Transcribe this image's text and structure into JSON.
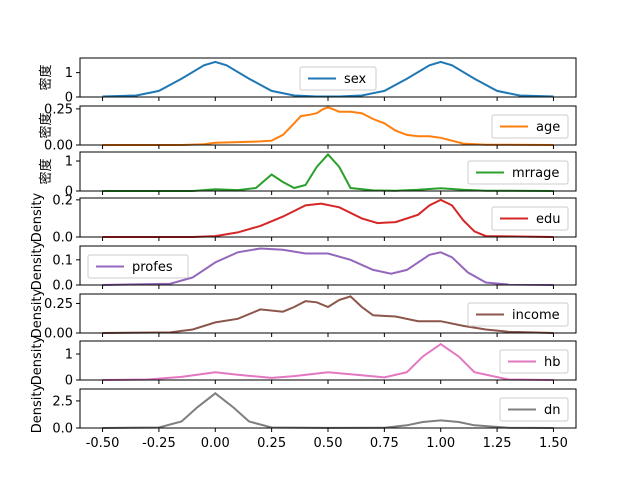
{
  "chart_data": {
    "type": "line",
    "xlim": [
      -0.6,
      1.6
    ],
    "x_ticks": [
      -0.5,
      -0.25,
      0.0,
      0.25,
      0.5,
      0.75,
      1.0,
      1.25,
      1.5
    ],
    "x_tick_labels": [
      "-0.50",
      "-0.25",
      "0.00",
      "0.25",
      "0.50",
      "0.75",
      "1.00",
      "1.25",
      "1.50"
    ],
    "grid": false,
    "panels": [
      {
        "name": "sex",
        "color": "#1f77b4",
        "ylabel": "密度",
        "legend_position": "center",
        "ylim": [
          0,
          1.6
        ],
        "y_ticks": [
          0,
          1
        ],
        "y_tick_labels": [
          "0",
          "1"
        ],
        "points": [
          [
            -0.5,
            0.02
          ],
          [
            -0.35,
            0.06
          ],
          [
            -0.25,
            0.25
          ],
          [
            -0.15,
            0.75
          ],
          [
            -0.05,
            1.3
          ],
          [
            0.0,
            1.44
          ],
          [
            0.05,
            1.3
          ],
          [
            0.15,
            0.75
          ],
          [
            0.25,
            0.25
          ],
          [
            0.35,
            0.06
          ],
          [
            0.45,
            0.02
          ],
          [
            0.5,
            0.02
          ],
          [
            0.55,
            0.02
          ],
          [
            0.65,
            0.06
          ],
          [
            0.75,
            0.25
          ],
          [
            0.85,
            0.75
          ],
          [
            0.95,
            1.3
          ],
          [
            1.0,
            1.44
          ],
          [
            1.05,
            1.3
          ],
          [
            1.15,
            0.75
          ],
          [
            1.25,
            0.25
          ],
          [
            1.35,
            0.06
          ],
          [
            1.5,
            0.02
          ]
        ]
      },
      {
        "name": "age",
        "color": "#ff7f0e",
        "ylabel": "密度",
        "legend_position": "right",
        "ylim": [
          0,
          0.27
        ],
        "y_ticks": [
          0.0,
          0.25
        ],
        "y_tick_labels": [
          "0.00",
          "0.25"
        ],
        "points": [
          [
            -0.5,
            0.0
          ],
          [
            -0.15,
            0.0
          ],
          [
            -0.05,
            0.005
          ],
          [
            0.0,
            0.015
          ],
          [
            0.1,
            0.02
          ],
          [
            0.2,
            0.025
          ],
          [
            0.25,
            0.03
          ],
          [
            0.3,
            0.07
          ],
          [
            0.35,
            0.15
          ],
          [
            0.38,
            0.2
          ],
          [
            0.42,
            0.21
          ],
          [
            0.45,
            0.22
          ],
          [
            0.48,
            0.25
          ],
          [
            0.5,
            0.26
          ],
          [
            0.52,
            0.25
          ],
          [
            0.55,
            0.23
          ],
          [
            0.6,
            0.23
          ],
          [
            0.65,
            0.22
          ],
          [
            0.7,
            0.18
          ],
          [
            0.75,
            0.15
          ],
          [
            0.8,
            0.1
          ],
          [
            0.85,
            0.07
          ],
          [
            0.9,
            0.06
          ],
          [
            0.95,
            0.06
          ],
          [
            1.0,
            0.05
          ],
          [
            1.05,
            0.03
          ],
          [
            1.1,
            0.01
          ],
          [
            1.2,
            0.002
          ],
          [
            1.5,
            0.0
          ]
        ]
      },
      {
        "name": "mrrage",
        "color": "#2ca02c",
        "ylabel": "密度",
        "legend_position": "right",
        "ylim": [
          0,
          1.3
        ],
        "y_ticks": [
          0,
          1
        ],
        "y_tick_labels": [
          "0",
          "1"
        ],
        "points": [
          [
            -0.5,
            0.0
          ],
          [
            -0.1,
            0.0
          ],
          [
            0.0,
            0.06
          ],
          [
            0.1,
            0.03
          ],
          [
            0.18,
            0.1
          ],
          [
            0.25,
            0.55
          ],
          [
            0.3,
            0.3
          ],
          [
            0.35,
            0.1
          ],
          [
            0.4,
            0.2
          ],
          [
            0.45,
            0.8
          ],
          [
            0.5,
            1.22
          ],
          [
            0.55,
            0.8
          ],
          [
            0.6,
            0.1
          ],
          [
            0.7,
            0.02
          ],
          [
            0.8,
            0.01
          ],
          [
            0.9,
            0.04
          ],
          [
            1.0,
            0.09
          ],
          [
            1.1,
            0.04
          ],
          [
            1.2,
            0.01
          ],
          [
            1.5,
            0.0
          ]
        ]
      },
      {
        "name": "edu",
        "color": "#d62728",
        "ylabel": "Density",
        "legend_position": "right",
        "ylim": [
          0,
          0.21
        ],
        "y_ticks": [
          0.0,
          0.2
        ],
        "y_tick_labels": [
          "0.0",
          "0.2"
        ],
        "points": [
          [
            -0.5,
            0.0
          ],
          [
            -0.1,
            0.0
          ],
          [
            0.0,
            0.005
          ],
          [
            0.1,
            0.025
          ],
          [
            0.2,
            0.06
          ],
          [
            0.3,
            0.11
          ],
          [
            0.4,
            0.17
          ],
          [
            0.47,
            0.18
          ],
          [
            0.55,
            0.16
          ],
          [
            0.65,
            0.1
          ],
          [
            0.72,
            0.075
          ],
          [
            0.8,
            0.08
          ],
          [
            0.9,
            0.12
          ],
          [
            0.95,
            0.17
          ],
          [
            1.0,
            0.2
          ],
          [
            1.05,
            0.17
          ],
          [
            1.1,
            0.09
          ],
          [
            1.15,
            0.03
          ],
          [
            1.2,
            0.005
          ],
          [
            1.5,
            0.0
          ]
        ]
      },
      {
        "name": "profes",
        "color": "#9467bd",
        "ylabel": "Density",
        "legend_position": "left",
        "ylim": [
          0,
          0.155
        ],
        "y_ticks": [
          0.0,
          0.1
        ],
        "y_tick_labels": [
          "0.0",
          "0.1"
        ],
        "points": [
          [
            -0.5,
            0.0
          ],
          [
            -0.2,
            0.005
          ],
          [
            -0.1,
            0.03
          ],
          [
            0.0,
            0.09
          ],
          [
            0.1,
            0.13
          ],
          [
            0.2,
            0.145
          ],
          [
            0.3,
            0.14
          ],
          [
            0.4,
            0.125
          ],
          [
            0.5,
            0.125
          ],
          [
            0.6,
            0.1
          ],
          [
            0.7,
            0.06
          ],
          [
            0.78,
            0.045
          ],
          [
            0.85,
            0.06
          ],
          [
            0.95,
            0.12
          ],
          [
            1.0,
            0.13
          ],
          [
            1.05,
            0.11
          ],
          [
            1.12,
            0.05
          ],
          [
            1.2,
            0.01
          ],
          [
            1.3,
            0.002
          ],
          [
            1.5,
            0.0
          ]
        ]
      },
      {
        "name": "income",
        "color": "#8c564b",
        "ylabel": "Density",
        "legend_position": "right",
        "ylim": [
          0,
          0.33
        ],
        "y_ticks": [
          0.0,
          0.25
        ],
        "y_tick_labels": [
          "0.00",
          "0.25"
        ],
        "points": [
          [
            -0.5,
            0.0
          ],
          [
            -0.2,
            0.005
          ],
          [
            -0.1,
            0.03
          ],
          [
            0.0,
            0.09
          ],
          [
            0.1,
            0.12
          ],
          [
            0.2,
            0.2
          ],
          [
            0.3,
            0.18
          ],
          [
            0.35,
            0.22
          ],
          [
            0.4,
            0.27
          ],
          [
            0.45,
            0.26
          ],
          [
            0.5,
            0.22
          ],
          [
            0.55,
            0.28
          ],
          [
            0.6,
            0.31
          ],
          [
            0.65,
            0.22
          ],
          [
            0.7,
            0.15
          ],
          [
            0.8,
            0.14
          ],
          [
            0.9,
            0.1
          ],
          [
            1.0,
            0.1
          ],
          [
            1.1,
            0.06
          ],
          [
            1.2,
            0.03
          ],
          [
            1.3,
            0.01
          ],
          [
            1.5,
            0.0
          ]
        ]
      },
      {
        "name": "hb",
        "color": "#e377c2",
        "ylabel": "Density",
        "legend_position": "right",
        "ylim": [
          0,
          1.5
        ],
        "y_ticks": [
          0,
          1
        ],
        "y_tick_labels": [
          "0",
          "1"
        ],
        "points": [
          [
            -0.5,
            0.0
          ],
          [
            -0.3,
            0.02
          ],
          [
            -0.15,
            0.12
          ],
          [
            0.0,
            0.3
          ],
          [
            0.1,
            0.2
          ],
          [
            0.25,
            0.08
          ],
          [
            0.35,
            0.15
          ],
          [
            0.5,
            0.3
          ],
          [
            0.6,
            0.22
          ],
          [
            0.75,
            0.1
          ],
          [
            0.85,
            0.3
          ],
          [
            0.92,
            0.9
          ],
          [
            1.0,
            1.38
          ],
          [
            1.08,
            0.9
          ],
          [
            1.15,
            0.3
          ],
          [
            1.3,
            0.02
          ],
          [
            1.5,
            0.0
          ]
        ]
      },
      {
        "name": "dn",
        "color": "#7f7f7f",
        "ylabel": "Density",
        "legend_position": "right",
        "ylim": [
          0,
          3.6
        ],
        "y_ticks": [
          0.0,
          2.5
        ],
        "y_tick_labels": [
          "0.0",
          "2.5"
        ],
        "points": [
          [
            -0.5,
            0.0
          ],
          [
            -0.25,
            0.05
          ],
          [
            -0.15,
            0.6
          ],
          [
            -0.08,
            1.9
          ],
          [
            0.0,
            3.2
          ],
          [
            0.08,
            1.9
          ],
          [
            0.15,
            0.6
          ],
          [
            0.25,
            0.05
          ],
          [
            0.5,
            0.01
          ],
          [
            0.75,
            0.02
          ],
          [
            0.85,
            0.25
          ],
          [
            0.92,
            0.55
          ],
          [
            1.0,
            0.7
          ],
          [
            1.08,
            0.55
          ],
          [
            1.15,
            0.25
          ],
          [
            1.3,
            0.03
          ],
          [
            1.5,
            0.0
          ]
        ]
      }
    ]
  }
}
